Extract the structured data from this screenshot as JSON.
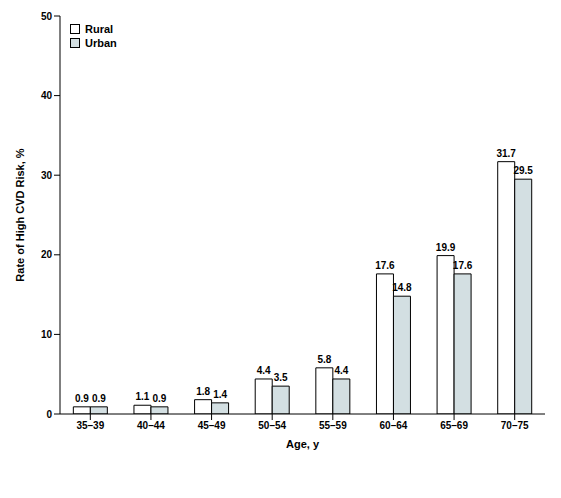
{
  "chart_data": {
    "type": "bar",
    "x_label": "Age, y",
    "y_label": "Rate of High CVD Risk, %",
    "categories": [
      "35–39",
      "40–44",
      "45–49",
      "50–54",
      "55–59",
      "60–64",
      "65–69",
      "70–75"
    ],
    "series": [
      {
        "name": "Rural",
        "color": "#ffffff",
        "values": [
          0.9,
          1.1,
          1.8,
          4.4,
          5.8,
          17.6,
          19.9,
          31.7
        ]
      },
      {
        "name": "Urban",
        "color": "#d3dfe2",
        "values": [
          0.9,
          0.9,
          1.4,
          3.5,
          4.4,
          14.8,
          17.6,
          29.5
        ]
      }
    ],
    "ylim": [
      0,
      50
    ],
    "yticks": [
      0,
      10,
      20,
      30,
      40,
      50
    ],
    "grid": false,
    "legend": "upper left",
    "data_labels": true
  }
}
